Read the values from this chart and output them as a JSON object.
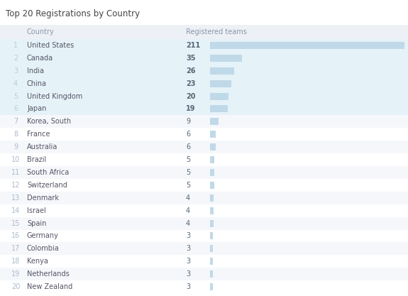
{
  "title": "Top 20 Registrations by Country",
  "col_country": "Country",
  "col_teams": "Registered teams",
  "rows": [
    {
      "rank": 1,
      "country": "United States",
      "teams": 211
    },
    {
      "rank": 2,
      "country": "Canada",
      "teams": 35
    },
    {
      "rank": 3,
      "country": "India",
      "teams": 26
    },
    {
      "rank": 4,
      "country": "China",
      "teams": 23
    },
    {
      "rank": 5,
      "country": "United Kingdom",
      "teams": 20
    },
    {
      "rank": 6,
      "country": "Japan",
      "teams": 19
    },
    {
      "rank": 7,
      "country": "Korea, South",
      "teams": 9
    },
    {
      "rank": 8,
      "country": "France",
      "teams": 6
    },
    {
      "rank": 9,
      "country": "Australia",
      "teams": 6
    },
    {
      "rank": 10,
      "country": "Brazil",
      "teams": 5
    },
    {
      "rank": 11,
      "country": "South Africa",
      "teams": 5
    },
    {
      "rank": 12,
      "country": "Switzerland",
      "teams": 5
    },
    {
      "rank": 13,
      "country": "Denmark",
      "teams": 4
    },
    {
      "rank": 14,
      "country": "Israel",
      "teams": 4
    },
    {
      "rank": 15,
      "country": "Spain",
      "teams": 4
    },
    {
      "rank": 16,
      "country": "Germany",
      "teams": 3
    },
    {
      "rank": 17,
      "country": "Colombia",
      "teams": 3
    },
    {
      "rank": 18,
      "country": "Kenya",
      "teams": 3
    },
    {
      "rank": 19,
      "country": "Netherlands",
      "teams": 3
    },
    {
      "rank": 20,
      "country": "New Zealand",
      "teams": 3
    }
  ],
  "bg_color": "#ffffff",
  "header_bg": "#edf0f5",
  "row_odd_bg": "#f5f7fb",
  "row_even_bg": "#ffffff",
  "highlight_ranks": [
    1,
    2,
    3,
    4,
    5,
    6
  ],
  "highlight_bg": "#e5f2f8",
  "bar_color": "#c0d9e8",
  "title_color": "#444444",
  "header_text_color": "#8899aa",
  "rank_odd_color": "#aabbcc",
  "rank_even_color": "#bbccdd",
  "country_color": "#555566",
  "teams_color": "#556677",
  "max_bar_value": 211,
  "title_fontsize": 8.5,
  "header_fontsize": 7.0,
  "row_fontsize": 7.0
}
